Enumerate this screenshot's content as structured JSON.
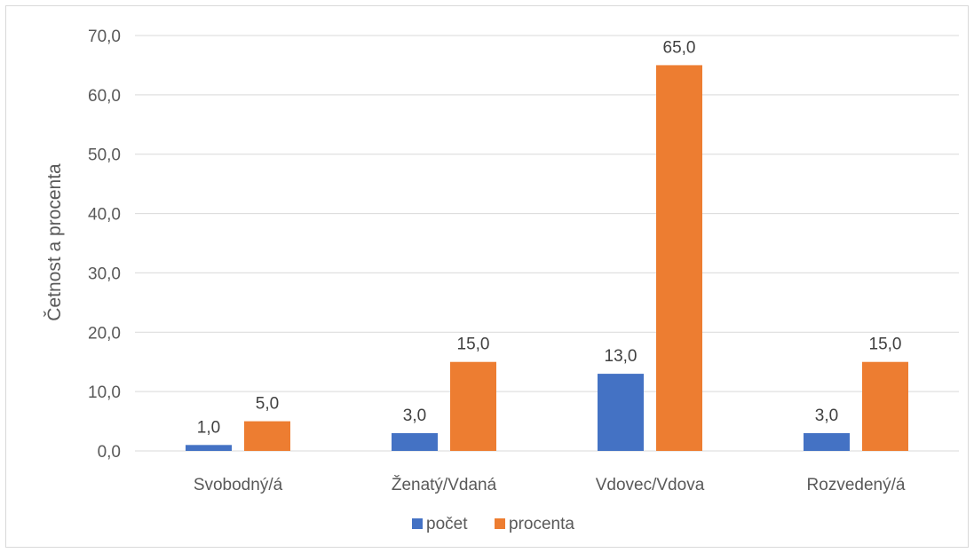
{
  "chart_data": {
    "type": "bar",
    "categories": [
      "Svobodný/á",
      "Ženatý/Vdaná",
      "Vdovec/Vdova",
      "Rozvedený/á"
    ],
    "series": [
      {
        "name": "počet",
        "values": [
          1.0,
          3.0,
          13.0,
          3.0
        ],
        "color": "#4472C4"
      },
      {
        "name": "procenta",
        "values": [
          5.0,
          15.0,
          65.0,
          15.0
        ],
        "color": "#ED7D31"
      }
    ],
    "ylabel": "Četnost a procenta",
    "ylim": [
      0,
      70
    ],
    "yticks": [
      "0,0",
      "10,0",
      "20,0",
      "30,0",
      "40,0",
      "50,0",
      "60,0",
      "70,0"
    ],
    "data_labels": [
      [
        "1,0",
        "3,0",
        "13,0",
        "3,0"
      ],
      [
        "5,0",
        "15,0",
        "65,0",
        "15,0"
      ]
    ],
    "grid": true,
    "legend_position": "bottom"
  }
}
